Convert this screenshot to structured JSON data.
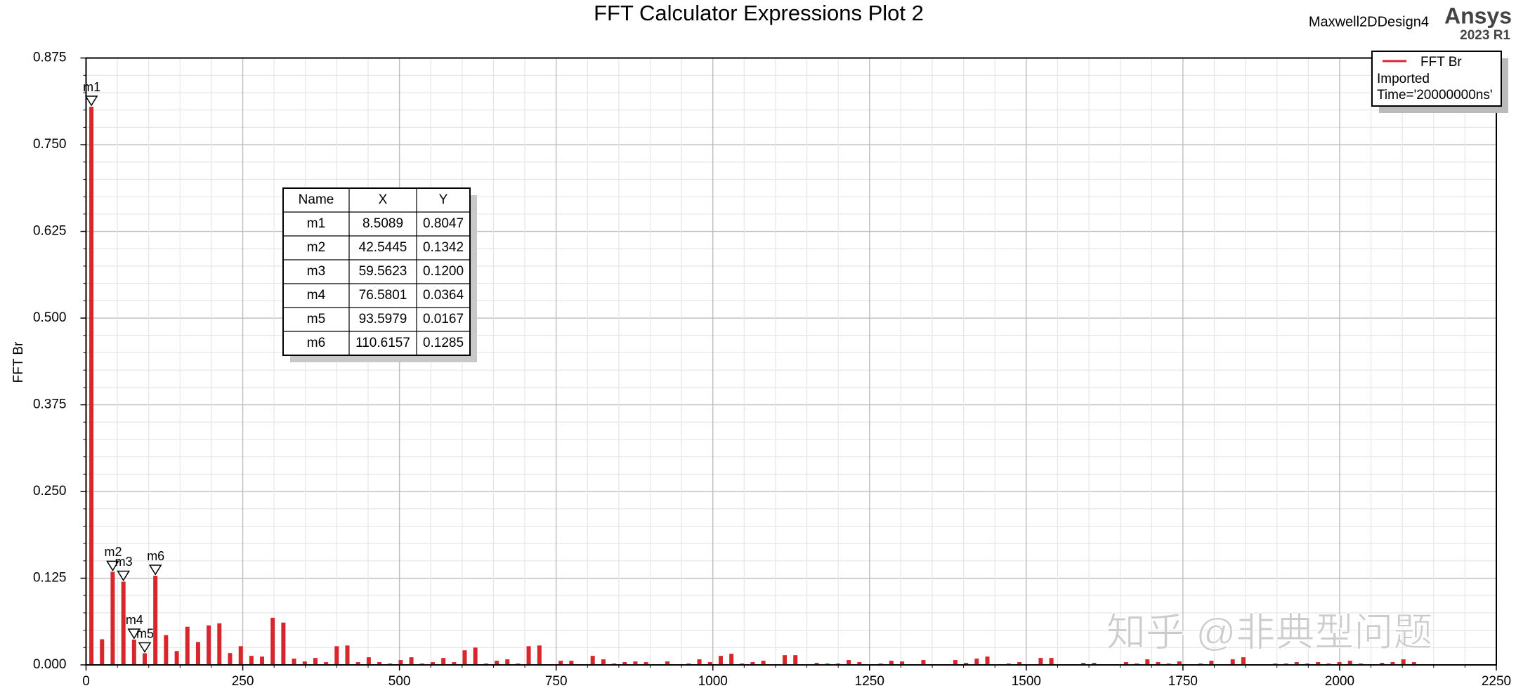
{
  "chart_data": {
    "type": "bar",
    "title": "FFT Calculator Expressions Plot 2",
    "y_label": "FFT Br",
    "header": {
      "design": "Maxwell2DDesign4",
      "brand": "Ansys",
      "version": "2023 R1"
    },
    "watermark": "知乎 @非典型问题",
    "legend_extra": [
      "Imported",
      "Time='20000000ns'"
    ],
    "legend_position": "upper right",
    "grid": true,
    "xlim": [
      0,
      2250
    ],
    "xticks": [
      0,
      250,
      500,
      750,
      1000,
      1250,
      1500,
      1750,
      2000,
      2250
    ],
    "ylim": [
      0,
      0.875
    ],
    "yticks": [
      {
        "value": 0,
        "label": "0.000"
      },
      {
        "value": 0.125,
        "label": "0.125"
      },
      {
        "value": 0.25,
        "label": "0.250"
      },
      {
        "value": 0.375,
        "label": "0.375"
      },
      {
        "value": 0.5,
        "label": "0.500"
      },
      {
        "value": 0.625,
        "label": "0.625"
      },
      {
        "value": 0.75,
        "label": "0.750"
      },
      {
        "value": 0.875,
        "label": "0.875"
      }
    ],
    "x": [
      8.5,
      25.5,
      42.5,
      59.6,
      76.6,
      93.6,
      110.6,
      127.6,
      144.7,
      161.7,
      178.7,
      195.7,
      212.7,
      229.7,
      246.8,
      263.8,
      280.8,
      297.8,
      314.8,
      331.8,
      348.9,
      365.9,
      382.9,
      399.9,
      416.9,
      433.9,
      451.0,
      468.0,
      485.0,
      502.0,
      519.0,
      536.1,
      553.1,
      570.1,
      587.1,
      604.1,
      621.1,
      638.2,
      655.2,
      672.2,
      689.2,
      706.2,
      723.3,
      740.3,
      757.3,
      774.3,
      791.3,
      808.3,
      825.4,
      842.4,
      859.4,
      876.4,
      893.4,
      910.4,
      927.5,
      944.5,
      961.5,
      978.5,
      995.5,
      1012.6,
      1029.6,
      1046.6,
      1063.6,
      1080.6,
      1097.6,
      1114.7,
      1131.7,
      1148.7,
      1165.7,
      1182.7,
      1199.8,
      1216.8,
      1233.8,
      1250.8,
      1267.8,
      1284.8,
      1301.9,
      1318.9,
      1335.9,
      1352.9,
      1369.9,
      1386.9,
      1404.0,
      1421.0,
      1438.0,
      1455.0,
      1472.0,
      1489.1,
      1506.1,
      1523.1,
      1540.1,
      1557.1,
      1574.1,
      1591.2,
      1608.2,
      1625.2,
      1642.2,
      1659.2,
      1676.2,
      1693.3,
      1710.3,
      1727.3,
      1744.3,
      1761.3,
      1778.4,
      1795.4,
      1812.4,
      1829.4,
      1846.4,
      1863.4,
      1880.5,
      1897.5,
      1914.5,
      1931.5,
      1948.5,
      1965.6,
      1982.6,
      1999.6,
      2016.6,
      2033.6,
      2050.6,
      2067.7,
      2084.7,
      2101.7,
      2118.7,
      2135.7
    ],
    "series": [
      {
        "name": "FFT Br",
        "color": "#d9262c",
        "values": [
          0.8047,
          0.037,
          0.1342,
          0.12,
          0.0364,
          0.0167,
          0.1285,
          0.043,
          0.02,
          0.055,
          0.033,
          0.057,
          0.06,
          0.017,
          0.027,
          0.013,
          0.012,
          0.068,
          0.061,
          0.009,
          0.005,
          0.01,
          0.004,
          0.027,
          0.028,
          0.004,
          0.011,
          0.004,
          0.002,
          0.007,
          0.011,
          0.002,
          0.004,
          0.01,
          0.004,
          0.021,
          0.025,
          0.002,
          0.006,
          0.008,
          0.002,
          0.027,
          0.028,
          0.001,
          0.006,
          0.006,
          0.001,
          0.013,
          0.008,
          0.002,
          0.004,
          0.005,
          0.004,
          0.001,
          0.005,
          0.001,
          0.002,
          0.008,
          0.004,
          0.013,
          0.016,
          0.002,
          0.004,
          0.006,
          0.001,
          0.014,
          0.014,
          0.001,
          0.003,
          0.002,
          0.002,
          0.007,
          0.004,
          0.001,
          0.002,
          0.006,
          0.005,
          0.001,
          0.007,
          0.001,
          0.001,
          0.007,
          0.003,
          0.009,
          0.012,
          0.001,
          0.002,
          0.004,
          0.001,
          0.01,
          0.01,
          0.001,
          0.001,
          0.003,
          0.003,
          0.001,
          0.001,
          0.004,
          0.002,
          0.008,
          0.004,
          0.002,
          0.005,
          0.001,
          0.002,
          0.006,
          0.001,
          0.008,
          0.011,
          0.001,
          0.001,
          0.002,
          0.002,
          0.004,
          0.002,
          0.004,
          0.002,
          0.004,
          0.006,
          0.002,
          0.001,
          0.003,
          0.004,
          0.008,
          0.004,
          0.001
        ]
      }
    ],
    "markers": {
      "columns": [
        "Name",
        "X",
        "Y"
      ],
      "rows": [
        [
          "m1",
          "8.5089",
          "0.8047"
        ],
        [
          "m2",
          "42.5445",
          "0.1342"
        ],
        [
          "m3",
          "59.5623",
          "0.1200"
        ],
        [
          "m4",
          "76.5801",
          "0.0364"
        ],
        [
          "m5",
          "93.5979",
          "0.0167"
        ],
        [
          "m6",
          "110.6157",
          "0.1285"
        ]
      ]
    }
  }
}
